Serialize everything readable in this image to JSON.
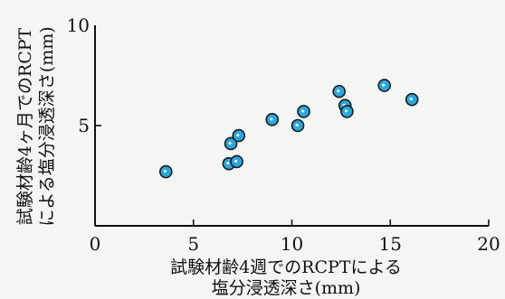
{
  "chart_data": {
    "type": "scatter",
    "xlabel": [
      "試験材齢4週でのRCPTによる",
      "塩分浸透深さ(mm)"
    ],
    "ylabel": [
      "試験材齢4ヶ月でのRCPT",
      "による塩分浸透深さ(mm)"
    ],
    "xlim": [
      0,
      20
    ],
    "ylim": [
      0,
      10
    ],
    "xticks": [
      "0",
      "5",
      "10",
      "15",
      "20"
    ],
    "yticks": [
      "5",
      "10"
    ],
    "grid": false,
    "marker_color": "#29a8e0",
    "marker_edge": "#1a1a1a",
    "points": [
      {
        "x": 3.6,
        "y": 2.7
      },
      {
        "x": 6.8,
        "y": 3.1
      },
      {
        "x": 7.2,
        "y": 3.2
      },
      {
        "x": 6.9,
        "y": 4.1
      },
      {
        "x": 7.3,
        "y": 4.5
      },
      {
        "x": 9.0,
        "y": 5.3
      },
      {
        "x": 10.3,
        "y": 5.0
      },
      {
        "x": 10.6,
        "y": 5.7
      },
      {
        "x": 12.4,
        "y": 6.7
      },
      {
        "x": 12.7,
        "y": 6.0
      },
      {
        "x": 12.8,
        "y": 5.7
      },
      {
        "x": 14.7,
        "y": 7.0
      },
      {
        "x": 16.1,
        "y": 6.3
      }
    ]
  }
}
